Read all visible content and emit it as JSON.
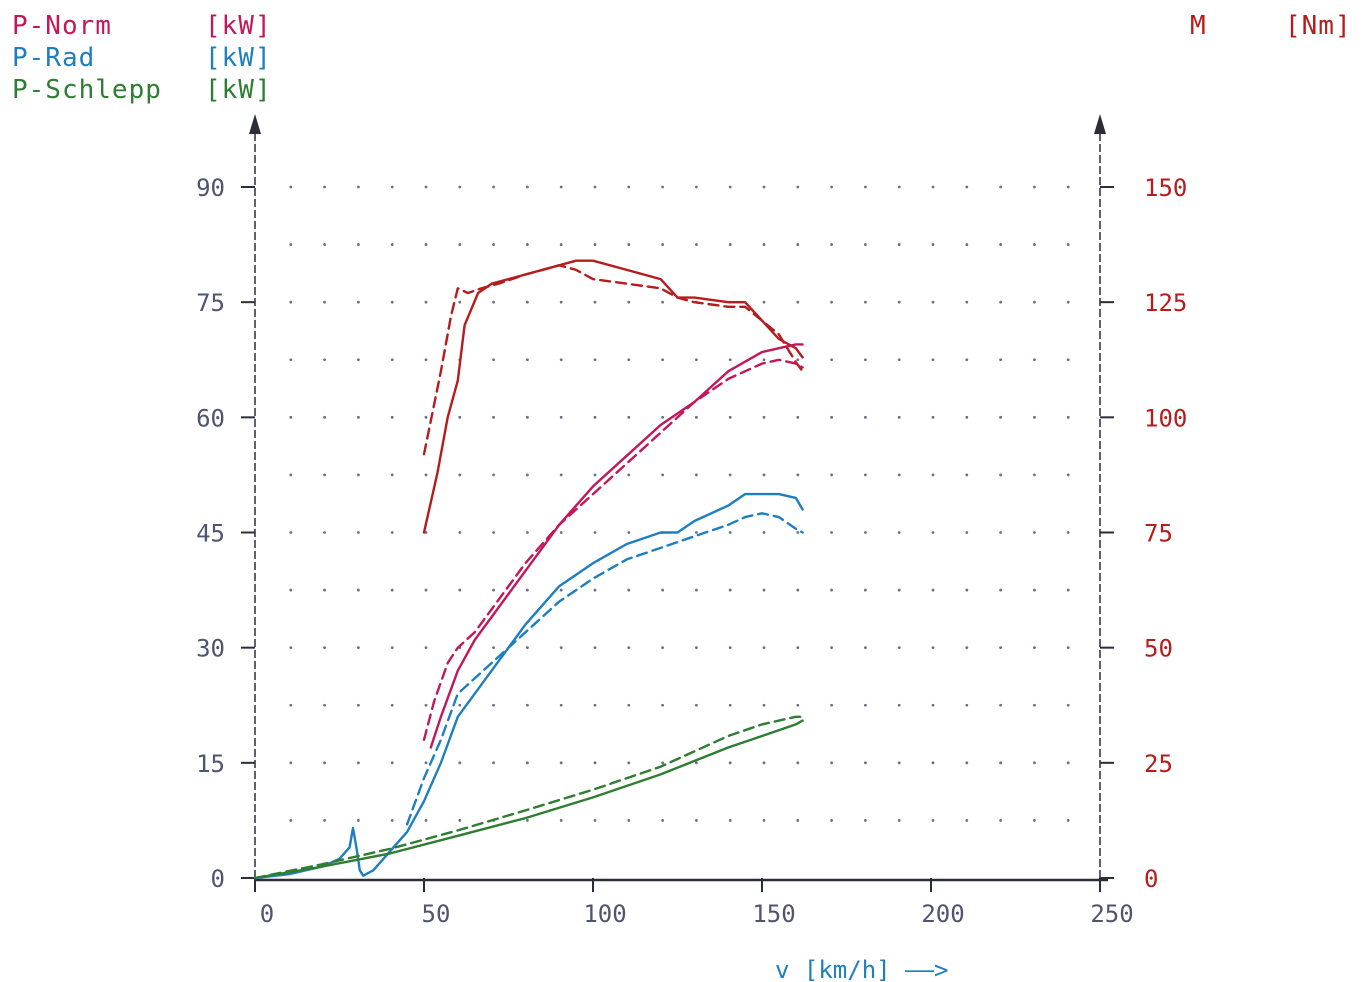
{
  "legend": [
    {
      "name": "P-Norm",
      "unit": "[kW]",
      "color": "#c2185b"
    },
    {
      "name": "P-Rad",
      "unit": "[kW]",
      "color": "#1e7fc0"
    },
    {
      "name": "P-Schlepp",
      "unit": "[kW]",
      "color": "#2e7d32"
    }
  ],
  "right_axis": {
    "name": "M",
    "unit": "[Nm]",
    "color": "#b71c1c"
  },
  "chart_data": {
    "type": "line",
    "xlabel": "v [km/h] ——>",
    "xlim": [
      0,
      250
    ],
    "ylim_left": [
      0,
      90
    ],
    "ylim_right": [
      0,
      150
    ],
    "xticks": [
      "0",
      "50",
      "100",
      "150",
      "200",
      "250"
    ],
    "yticks_left": [
      "0",
      "15",
      "30",
      "45",
      "60",
      "75",
      "90"
    ],
    "yticks_right": [
      "0",
      "25",
      "50",
      "75",
      "100",
      "125",
      "150"
    ],
    "grid": "dotted",
    "series": [
      {
        "name": "M",
        "axis": "right",
        "style": "solid",
        "color": "#b71c1c",
        "x": [
          50,
          54,
          57,
          60,
          62,
          66,
          70,
          80,
          90,
          95,
          100,
          110,
          120,
          125,
          130,
          140,
          145,
          150,
          155,
          160,
          162
        ],
        "y": [
          75,
          88,
          100,
          108,
          120,
          127,
          129,
          131,
          133,
          134,
          134,
          132,
          130,
          126,
          126,
          125,
          125,
          121,
          117,
          115,
          113
        ]
      },
      {
        "name": "M",
        "axis": "right",
        "style": "dashed",
        "color": "#b71c1c",
        "x": [
          50,
          55,
          58,
          60,
          63,
          67,
          72,
          80,
          90,
          95,
          100,
          110,
          120,
          125,
          130,
          140,
          145,
          150,
          155,
          160,
          162
        ],
        "y": [
          92,
          110,
          122,
          128,
          127,
          128,
          129,
          131,
          133,
          132,
          130,
          129,
          128,
          126,
          125,
          124,
          124,
          121,
          118,
          112,
          110
        ]
      },
      {
        "name": "P-Norm",
        "axis": "left",
        "style": "solid",
        "color": "#c2185b",
        "x": [
          52,
          55,
          60,
          65,
          70,
          80,
          90,
          100,
          110,
          120,
          130,
          140,
          150,
          155,
          160,
          162
        ],
        "y": [
          17,
          21,
          27,
          31,
          34,
          40,
          46,
          51,
          55,
          59,
          62,
          66,
          68.5,
          69,
          69.5,
          69.5
        ]
      },
      {
        "name": "P-Norm",
        "axis": "left",
        "style": "dashed",
        "color": "#c2185b",
        "x": [
          50,
          53,
          57,
          60,
          65,
          70,
          80,
          90,
          100,
          110,
          120,
          130,
          140,
          150,
          155,
          160,
          162
        ],
        "y": [
          18,
          23,
          28,
          30,
          32,
          35,
          41,
          46,
          50,
          54,
          58,
          62,
          65,
          67,
          67.5,
          67,
          66.5
        ]
      },
      {
        "name": "P-Rad",
        "axis": "left",
        "style": "solid",
        "color": "#1e7fc0",
        "x": [
          0,
          10,
          20,
          25,
          28,
          29,
          30,
          31,
          32,
          35,
          38,
          40,
          45,
          50,
          55,
          60,
          70,
          80,
          90,
          100,
          110,
          120,
          125,
          130,
          140,
          145,
          150,
          155,
          160,
          162
        ],
        "y": [
          0,
          0.5,
          1.5,
          2.5,
          4,
          6.5,
          4,
          1,
          0.3,
          1,
          2.5,
          3.5,
          6,
          10,
          15,
          21,
          27,
          33,
          38,
          41,
          43.5,
          45,
          45,
          46.5,
          48.5,
          50,
          50,
          50,
          49.5,
          48
        ]
      },
      {
        "name": "P-Rad",
        "axis": "left",
        "style": "dashed",
        "color": "#1e7fc0",
        "x": [
          45,
          50,
          55,
          60,
          70,
          80,
          90,
          100,
          110,
          120,
          130,
          140,
          145,
          150,
          155,
          160,
          162
        ],
        "y": [
          7,
          13,
          18,
          24,
          28,
          32,
          36,
          39,
          41.5,
          43,
          44.5,
          46,
          47,
          47.5,
          47,
          45.5,
          45
        ]
      },
      {
        "name": "P-Schlepp",
        "axis": "left",
        "style": "solid",
        "color": "#2e7d32",
        "x": [
          0,
          20,
          40,
          60,
          80,
          100,
          120,
          140,
          150,
          160,
          162
        ],
        "y": [
          0,
          1.5,
          3.2,
          5.5,
          7.8,
          10.5,
          13.5,
          17,
          18.5,
          20,
          20.5
        ]
      },
      {
        "name": "P-Schlepp",
        "axis": "left",
        "style": "dashed",
        "color": "#2e7d32",
        "x": [
          0,
          20,
          40,
          60,
          80,
          100,
          120,
          140,
          150,
          160,
          162
        ],
        "y": [
          0,
          1.8,
          3.8,
          6.2,
          8.8,
          11.5,
          14.5,
          18.5,
          20,
          21,
          21
        ]
      }
    ]
  }
}
